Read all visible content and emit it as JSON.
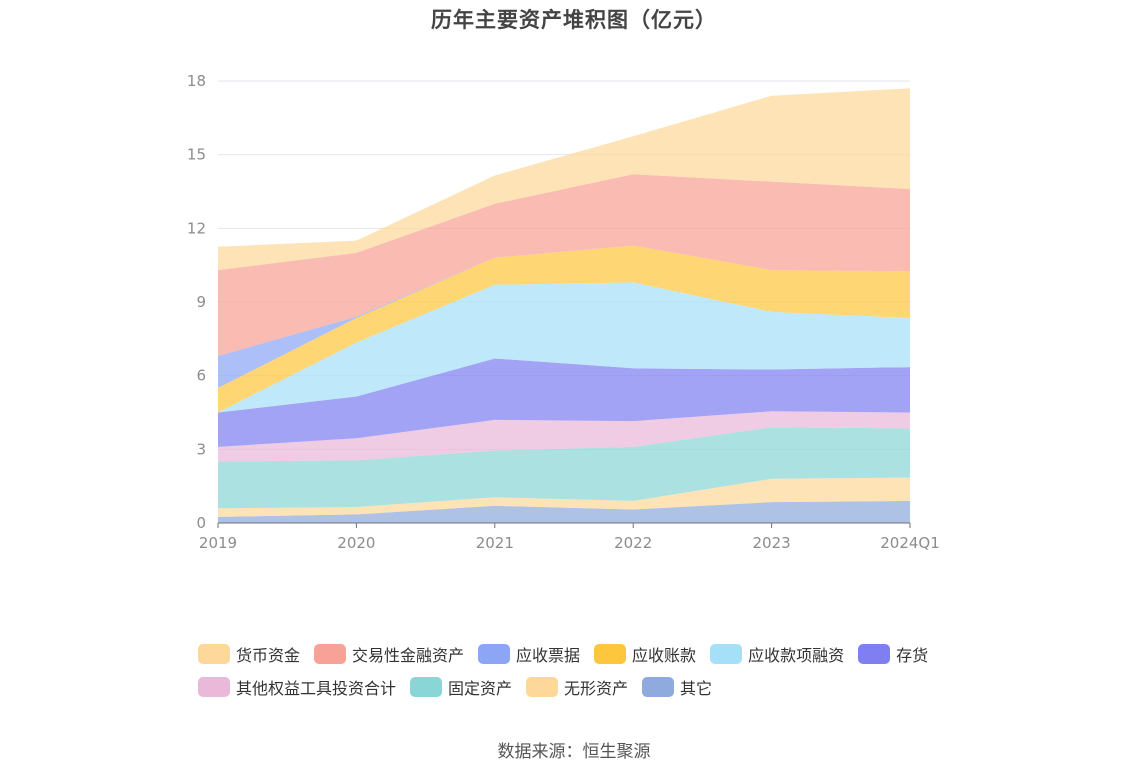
{
  "title": "历年主要资产堆积图（亿元）",
  "source": "数据来源：恒生聚源",
  "chart_data": {
    "type": "area",
    "stacked": true,
    "categories": [
      "2019",
      "2020",
      "2021",
      "2022",
      "2023",
      "2024Q1"
    ],
    "ylim": [
      0,
      18
    ],
    "yticks": [
      0,
      3,
      6,
      9,
      12,
      15,
      18
    ],
    "grid": true,
    "legend_position": "bottom",
    "series": [
      {
        "name": "其它",
        "color": "#8faadc",
        "values": [
          0.25,
          0.35,
          0.7,
          0.55,
          0.85,
          0.9
        ]
      },
      {
        "name": "无形资产",
        "color": "#fdd89a",
        "values": [
          0.35,
          0.3,
          0.35,
          0.35,
          0.95,
          0.95
        ]
      },
      {
        "name": "固定资产",
        "color": "#8ad6d6",
        "values": [
          1.9,
          1.9,
          1.9,
          2.2,
          2.1,
          2.0
        ]
      },
      {
        "name": "其他权益工具投资合计",
        "color": "#eab8d9",
        "values": [
          0.6,
          0.9,
          1.25,
          1.05,
          0.65,
          0.65
        ]
      },
      {
        "name": "存货",
        "color": "#7f7ff2",
        "values": [
          1.4,
          1.7,
          2.5,
          2.15,
          1.7,
          1.85
        ]
      },
      {
        "name": "应收款项融资",
        "color": "#a6e0f8",
        "values": [
          0.0,
          2.2,
          3.0,
          3.5,
          2.35,
          2.0
        ]
      },
      {
        "name": "应收账款",
        "color": "#fdc63d",
        "values": [
          1.0,
          1.0,
          1.1,
          1.5,
          1.7,
          1.9
        ]
      },
      {
        "name": "应收票据",
        "color": "#8ca6f5",
        "values": [
          1.3,
          0.05,
          0.0,
          0.0,
          0.0,
          0.0
        ]
      },
      {
        "name": "交易性金融资产",
        "color": "#f8a196",
        "values": [
          3.5,
          2.6,
          2.2,
          2.9,
          3.6,
          3.35
        ]
      },
      {
        "name": "货币资金",
        "color": "#fdd89a",
        "values": [
          0.95,
          0.5,
          1.15,
          1.55,
          3.5,
          4.1
        ]
      }
    ]
  },
  "legend_rows": [
    [
      "货币资金",
      "交易性金融资产",
      "应收票据",
      "应收账款",
      "应收款项融资",
      "存货"
    ],
    [
      "其他权益工具投资合计",
      "固定资产",
      "无形资产",
      "其它"
    ]
  ]
}
